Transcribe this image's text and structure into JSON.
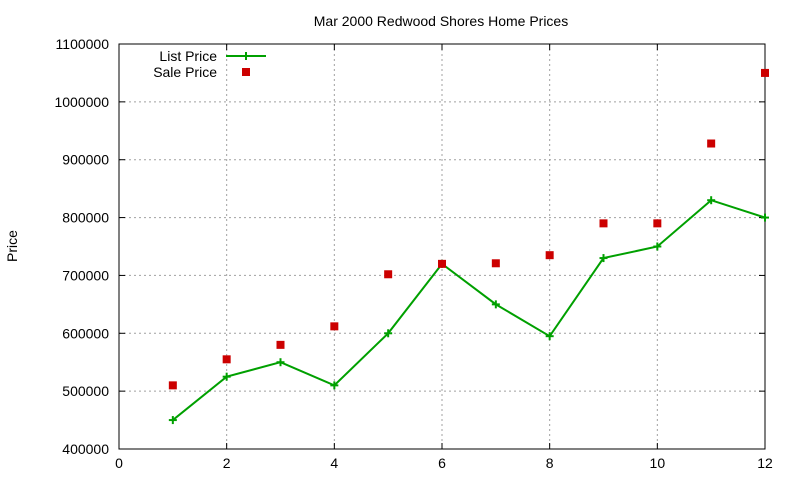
{
  "chart_data": {
    "type": "line",
    "title": "Mar 2000 Redwood Shores Home Prices",
    "xlabel": "",
    "ylabel": "Price",
    "xlim": [
      0,
      12
    ],
    "ylim": [
      400000,
      1100000
    ],
    "x_ticks": [
      "0",
      "2",
      "4",
      "6",
      "8",
      "10",
      "12"
    ],
    "y_ticks": [
      "400000",
      "500000",
      "600000",
      "700000",
      "800000",
      "900000",
      "1000000",
      "1100000"
    ],
    "grid": true,
    "legend_position": "top-left",
    "series": [
      {
        "name": "List Price",
        "style": "line-with-plus-markers",
        "color": "#00a000",
        "x": [
          1,
          2,
          3,
          4,
          5,
          6,
          7,
          8,
          9,
          10,
          11,
          12
        ],
        "values": [
          450000,
          525000,
          550000,
          510000,
          600000,
          720000,
          650000,
          595000,
          730000,
          750000,
          830000,
          800000
        ]
      },
      {
        "name": "Sale Price",
        "style": "square-markers",
        "color": "#cc0000",
        "x": [
          1,
          2,
          3,
          4,
          5,
          6,
          7,
          8,
          9,
          10,
          11,
          12
        ],
        "values": [
          510000,
          555000,
          580000,
          612000,
          702000,
          720000,
          721000,
          735000,
          790000,
          790000,
          928000,
          1050000
        ]
      }
    ]
  }
}
